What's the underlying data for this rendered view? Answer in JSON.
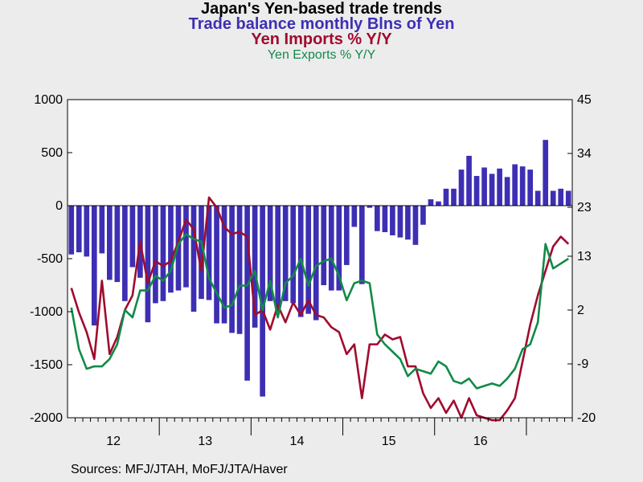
{
  "titles": {
    "main": "Japan's Yen-based trade trends",
    "balance": "Trade balance monthly Blns of Yen",
    "imports": "Yen Imports % Y/Y",
    "exports": "Yen Exports % Y/Y"
  },
  "source": "Sources:  MFJ/JTAH, MoFJ/JTA/Haver",
  "colors": {
    "balance": "#3d2fb3",
    "imports": "#a00b2e",
    "exports": "#118a48",
    "plot_bg": "#ffffff",
    "page_bg": "#ececec"
  },
  "chart_data": {
    "type": "bar+line",
    "x_start": "2012-01",
    "x_tick_labels": [
      "12",
      "13",
      "14",
      "15",
      "16"
    ],
    "left_axis": {
      "ylim": [
        -2000,
        1000
      ],
      "ticks": [
        1000,
        500,
        0,
        -500,
        -1000,
        -1500,
        -2000
      ]
    },
    "right_axis": {
      "ylim": [
        -20,
        45
      ],
      "ticks": [
        45,
        34,
        23,
        13,
        2,
        -9,
        -20
      ]
    },
    "grid": false,
    "series": [
      {
        "name": "Trade balance monthly Blns of Yen",
        "type": "bar",
        "axis": "left",
        "values": [
          -460,
          -440,
          -480,
          -1130,
          -450,
          -700,
          -720,
          -900,
          -580,
          -680,
          -1100,
          -920,
          -900,
          -820,
          -800,
          -770,
          -1000,
          -880,
          -890,
          -1110,
          -1110,
          -1200,
          -1210,
          -1650,
          -1150,
          -1800,
          -900,
          -1000,
          -900,
          -920,
          -1050,
          -1020,
          -1080,
          -750,
          -800,
          -800,
          -560,
          -200,
          -740,
          -20,
          -240,
          -250,
          -280,
          -300,
          -320,
          -370,
          -180,
          60,
          40,
          160,
          160,
          340,
          470,
          280,
          360,
          300,
          350,
          270,
          390,
          370,
          340,
          140,
          620,
          140,
          160,
          140
        ]
      },
      {
        "name": "Yen Imports % Y/Y",
        "type": "line",
        "axis": "right",
        "values": [
          6.5,
          1.5,
          -2.5,
          -8,
          8,
          -7,
          -3.5,
          2,
          5,
          16,
          7.5,
          12,
          11,
          12,
          16,
          20.5,
          18.5,
          10,
          25,
          23,
          19,
          17.5,
          18,
          17,
          1,
          2,
          -2,
          3,
          -0.5,
          3.5,
          1,
          4,
          1,
          0.5,
          -1.5,
          -2.5,
          -7,
          -5,
          -16,
          -5,
          -5,
          -3,
          -4,
          -3.5,
          -9.5,
          -9.5,
          -15,
          -18,
          -16,
          -19,
          -16.5,
          -20,
          -16,
          -19.5,
          -20,
          -20.5,
          -20.5,
          -18.5,
          -16,
          -8.5,
          -1,
          5,
          10,
          15,
          17,
          15.5
        ]
      },
      {
        "name": "Yen Exports % Y/Y",
        "type": "line",
        "axis": "right",
        "values": [
          2.5,
          -6,
          -10,
          -9.5,
          -9.5,
          -8,
          -5,
          2,
          0.5,
          6,
          6,
          9,
          8,
          10,
          15.5,
          17.5,
          16.5,
          16,
          8.5,
          5.5,
          2.5,
          3,
          7,
          7,
          10,
          2,
          8,
          0.5,
          7.5,
          9,
          12.5,
          7,
          11,
          12,
          12.5,
          9,
          4,
          7.5,
          8,
          7.5,
          -3,
          -5,
          -6.5,
          -8,
          -11.5,
          -10,
          -10.5,
          -11,
          -8.5,
          -9.5,
          -12.5,
          -13,
          -12,
          -14,
          -13.5,
          -13,
          -13.5,
          -12,
          -10,
          -6,
          -5,
          -0.5,
          15.5,
          10.5,
          11.5,
          12.5
        ]
      }
    ]
  }
}
